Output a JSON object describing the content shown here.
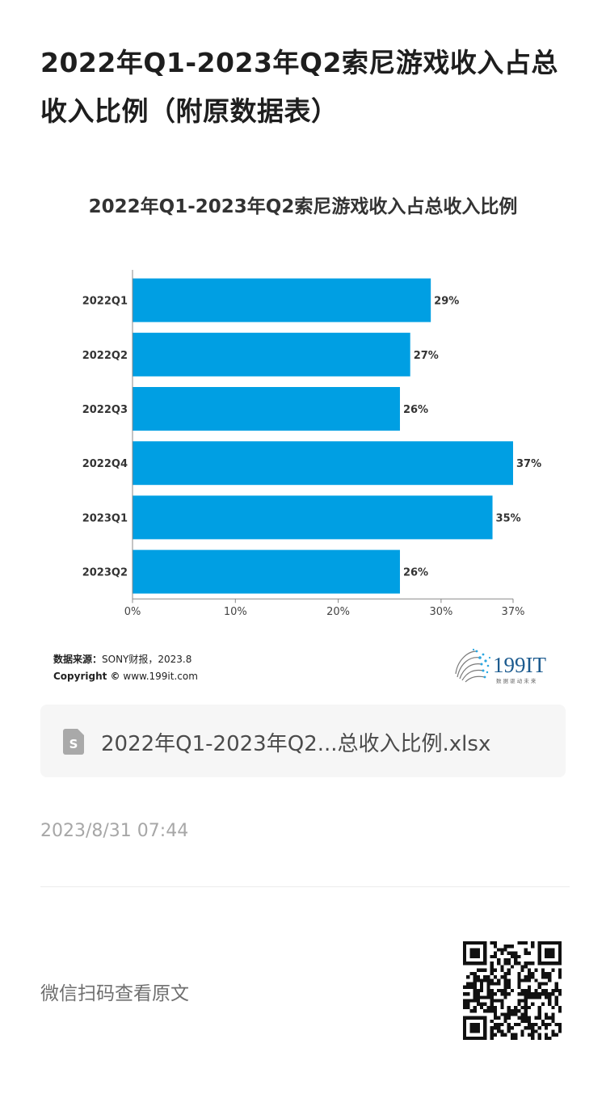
{
  "article": {
    "title": "2022年Q1-2023年Q2索尼游戏收入占总收入比例（附原数据表）"
  },
  "chart_data": {
    "type": "bar",
    "orientation": "horizontal",
    "title": "2022年Q1-2023年Q2索尼游戏收入占总收入比例",
    "categories": [
      "2022Q1",
      "2022Q2",
      "2022Q3",
      "2022Q4",
      "2023Q1",
      "2023Q2"
    ],
    "values": [
      29,
      27,
      26,
      37,
      35,
      26
    ],
    "data_labels": [
      "29%",
      "27%",
      "26%",
      "37%",
      "35%",
      "26%"
    ],
    "x_ticks": [
      0,
      10,
      20,
      30,
      37
    ],
    "x_tick_labels": [
      "0%",
      "10%",
      "20%",
      "30%",
      "37%"
    ],
    "xlim": [
      0,
      37
    ],
    "bar_color": "#009fe3",
    "grid": false,
    "legend": "none",
    "xlabel": "",
    "ylabel": ""
  },
  "source": {
    "label": "数据来源：",
    "text": "SONY财报，2023.8",
    "copyright_label": "Copyright ©",
    "copyright_text": "www.199it.com"
  },
  "brand": {
    "name": "199IT",
    "tagline": "数 据 驱 动 未 来",
    "color": "#1c5b8f"
  },
  "file": {
    "icon": "spreadsheet-file-icon",
    "name": "2022年Q1-2023年Q2...总收入比例.xlsx"
  },
  "meta": {
    "timestamp": "2023/8/31 07:44"
  },
  "footer": {
    "qr_hint": "微信扫码查看原文",
    "qr_icon": "qr-code-icon"
  }
}
